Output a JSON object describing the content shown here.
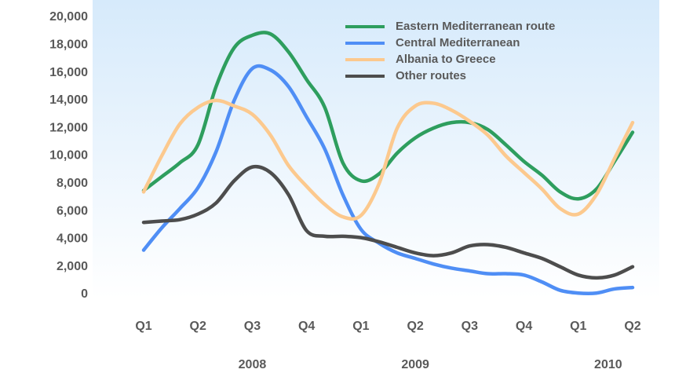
{
  "chart_data": {
    "type": "line",
    "categories": [
      "Q1",
      null,
      null,
      "Q2",
      null,
      null,
      "Q3",
      null,
      null,
      "Q4",
      null,
      null,
      "Q1",
      null,
      null,
      "Q2",
      null,
      null,
      "Q3",
      null,
      null,
      "Q4",
      null,
      null,
      "Q1",
      null,
      null,
      "Q2"
    ],
    "year_labels": [
      "2008",
      "2009",
      "2010"
    ],
    "series": [
      {
        "name": "Eastern Mediterranean route",
        "color": "#2e9e5e",
        "values": [
          7500,
          8500,
          9500,
          10800,
          15000,
          17800,
          18700,
          18800,
          17500,
          15500,
          13500,
          9500,
          8200,
          8700,
          10200,
          11300,
          12000,
          12400,
          12400,
          11900,
          10800,
          9600,
          8600,
          7400,
          6900,
          7600,
          9600,
          11700
        ]
      },
      {
        "name": "Central Mediterranean",
        "color": "#4f8ef5",
        "values": [
          3200,
          4800,
          6200,
          7700,
          10300,
          14000,
          16300,
          16200,
          15000,
          12800,
          10500,
          7200,
          4700,
          3700,
          3000,
          2600,
          2200,
          1900,
          1700,
          1500,
          1500,
          1400,
          900,
          300,
          100,
          100,
          400,
          500
        ]
      },
      {
        "name": "Albania to Greece",
        "color": "#fcc98e",
        "values": [
          7400,
          10000,
          12300,
          13500,
          14000,
          13600,
          13000,
          11500,
          9300,
          7800,
          6500,
          5600,
          5700,
          8000,
          12000,
          13600,
          13800,
          13300,
          12500,
          11500,
          10000,
          8800,
          7600,
          6200,
          5800,
          7200,
          9800,
          12400
        ]
      },
      {
        "name": "Other routes",
        "color": "#4d4d4d",
        "values": [
          5200,
          5300,
          5400,
          5800,
          6600,
          8200,
          9200,
          8800,
          7200,
          4600,
          4200,
          4200,
          4100,
          3800,
          3400,
          3000,
          2800,
          3000,
          3500,
          3600,
          3400,
          3000,
          2600,
          2000,
          1400,
          1200,
          1400,
          2000
        ]
      }
    ],
    "ylim": [
      0,
      20000
    ],
    "yticks": [
      0,
      {
        "value": 2000,
        "label": "2,000"
      },
      {
        "value": 4000,
        "label": "4,000"
      },
      {
        "value": 6000,
        "label": "6,000"
      },
      {
        "value": 8000,
        "label": "8,000"
      },
      {
        "value": 10000,
        "label": "10,000"
      },
      {
        "value": 12000,
        "label": "12,000"
      },
      {
        "value": 14000,
        "label": "14,000"
      },
      {
        "value": 16000,
        "label": "16,000"
      },
      {
        "value": 18000,
        "label": "18,000"
      },
      {
        "value": 20000,
        "label": "20,000"
      }
    ],
    "grid": false,
    "legend": "top-right"
  }
}
